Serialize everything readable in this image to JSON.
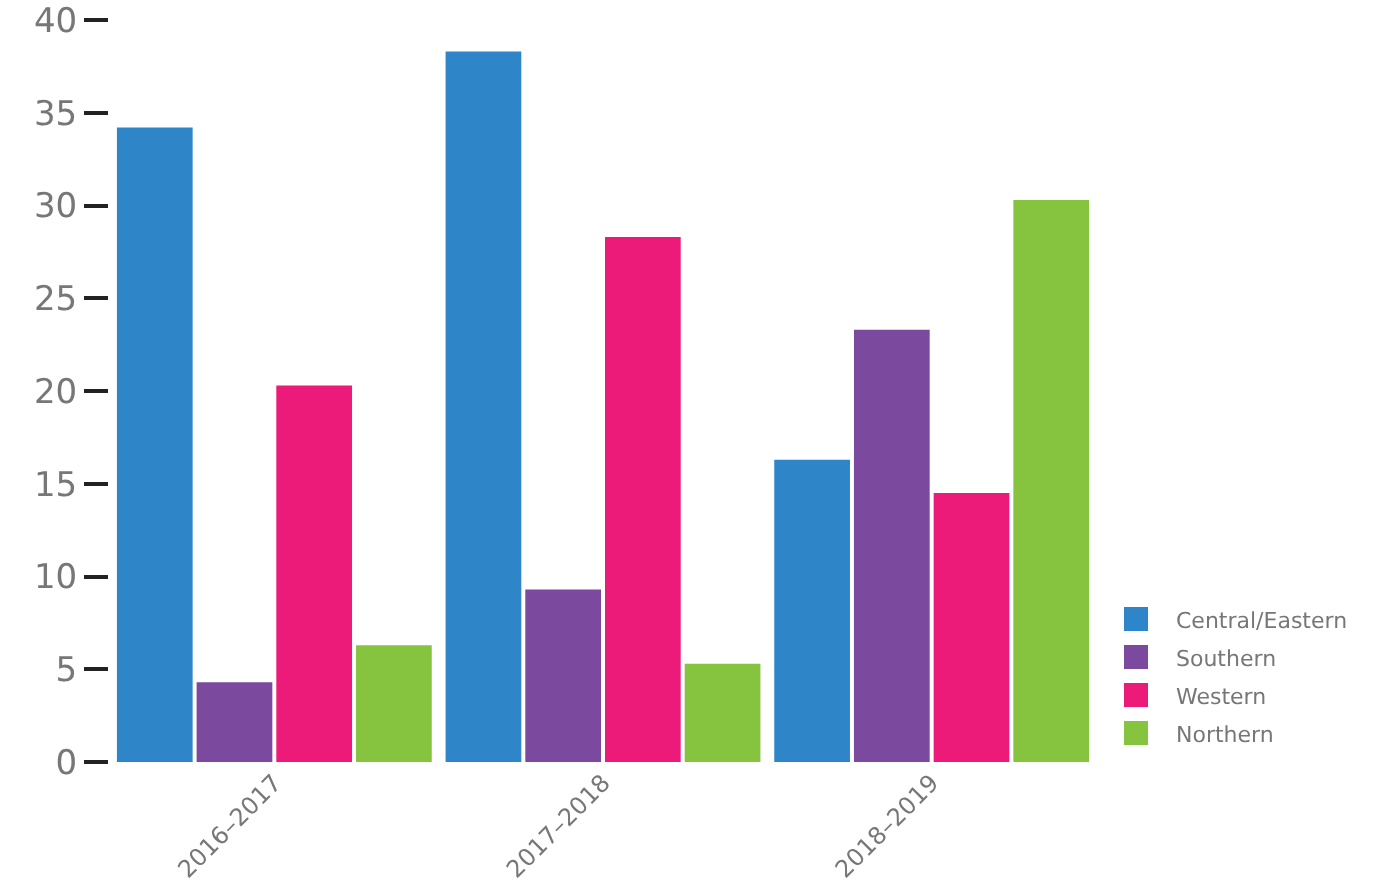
{
  "chart_data": {
    "type": "bar",
    "categories": [
      "2016–2017",
      "2017–2018",
      "2018–2019"
    ],
    "series": [
      {
        "name": "Central/Eastern",
        "color": "#2e86c8",
        "values": [
          34.2,
          38.3,
          16.3
        ]
      },
      {
        "name": "Southern",
        "color": "#7b4a9e",
        "values": [
          4.3,
          9.3,
          23.3
        ]
      },
      {
        "name": "Western",
        "color": "#ec1b7a",
        "values": [
          20.3,
          28.3,
          14.5
        ]
      },
      {
        "name": "Northern",
        "color": "#86c440",
        "values": [
          6.3,
          5.3,
          30.3
        ]
      }
    ],
    "ylim": [
      0,
      40
    ],
    "yticks": [
      0,
      5,
      10,
      15,
      20,
      25,
      30,
      35,
      40
    ],
    "grid": false,
    "legend": "bottom right"
  }
}
